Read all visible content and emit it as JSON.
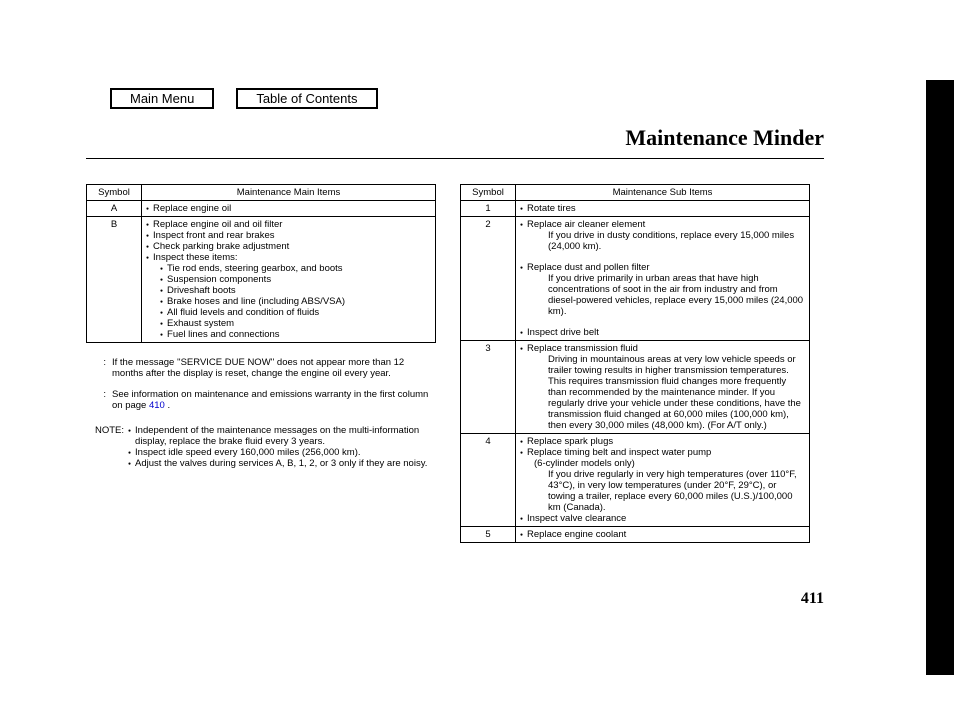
{
  "nav": {
    "main_menu": "Main Menu",
    "toc": "Table of Contents"
  },
  "title": "Maintenance Minder",
  "page_number": "411",
  "main_table": {
    "header": {
      "symbol": "Symbol",
      "items": "Maintenance Main Items"
    },
    "rows": [
      {
        "symbol": "A",
        "items": [
          "Replace engine oil"
        ],
        "sub": []
      },
      {
        "symbol": "B",
        "items": [
          "Replace engine oil   and oil filter",
          "Inspect front and rear brakes",
          "Check parking brake adjustment",
          "Inspect these items:"
        ],
        "sub": [
          "Tie rod ends, steering gearbox, and boots",
          "Suspension components",
          "Driveshaft boots",
          "Brake hoses and line (including ABS/VSA)",
          "All fluid levels and condition of fluids",
          "Exhaust system",
          "Fuel lines and connections"
        ]
      }
    ]
  },
  "sub_table": {
    "header": {
      "symbol": "Symbol",
      "items": "Maintenance Sub Items"
    },
    "rows": [
      {
        "symbol": "1",
        "lines": [
          {
            "t": "bul",
            "text": "Rotate tires"
          }
        ]
      },
      {
        "symbol": "2",
        "lines": [
          {
            "t": "bul",
            "text": "Replace air cleaner element"
          },
          {
            "t": "ind",
            "text": "If you drive in dusty conditions, replace every 15,000 miles (24,000 km)."
          },
          {
            "t": "sp"
          },
          {
            "t": "bul",
            "text": "Replace dust and pollen filter"
          },
          {
            "t": "ind",
            "text": "If you drive primarily in urban areas that have high concentrations of soot in the air from industry and from diesel-powered vehicles, replace every 15,000 miles (24,000 km)."
          },
          {
            "t": "sp"
          },
          {
            "t": "bul",
            "text": "Inspect drive belt"
          }
        ]
      },
      {
        "symbol": "3",
        "lines": [
          {
            "t": "bul",
            "text": "Replace transmission fluid"
          },
          {
            "t": "ind",
            "text": "Driving in mountainous areas at very low vehicle speeds or trailer towing results in higher transmission temperatures. This requires transmission fluid changes more frequently than recommended by the maintenance minder. If you regularly drive your vehicle under these conditions, have the transmission fluid changed at 60,000 miles (100,000 km), then every 30,000 miles (48,000 km). (For A/T only.)"
          }
        ]
      },
      {
        "symbol": "4",
        "lines": [
          {
            "t": "bul",
            "text": "Replace spark plugs"
          },
          {
            "t": "bul",
            "text": "Replace timing belt and inspect water pump"
          },
          {
            "t": "ind0",
            "text": "(6-cylinder models only)"
          },
          {
            "t": "ind",
            "text": "If you drive regularly in very high temperatures (over 110°F, 43°C), in very low temperatures (under    20°F,    29°C), or towing a trailer, replace every 60,000 miles (U.S.)/100,000 km (Canada)."
          },
          {
            "t": "bul",
            "text": "Inspect valve clearance"
          }
        ]
      },
      {
        "symbol": "5",
        "lines": [
          {
            "t": "bul",
            "text": "Replace engine coolant"
          }
        ]
      }
    ]
  },
  "footnotes": [
    {
      "m": ":",
      "text": "If the message ''SERVICE DUE NOW'' does not appear more than 12 months after the display is reset, change the engine oil every year."
    },
    {
      "m": ":",
      "text": "See information on maintenance and emissions warranty in the first column on page",
      "link": "410",
      "after": " ."
    }
  ],
  "note_label": "NOTE:",
  "note_items": [
    "Independent of the maintenance messages on the multi-information display, replace the brake fluid every 3 years.",
    "Inspect idle speed every 160,000 miles (256,000 km).",
    "Adjust the valves during services A, B, 1, 2, or 3 only if they are noisy."
  ]
}
